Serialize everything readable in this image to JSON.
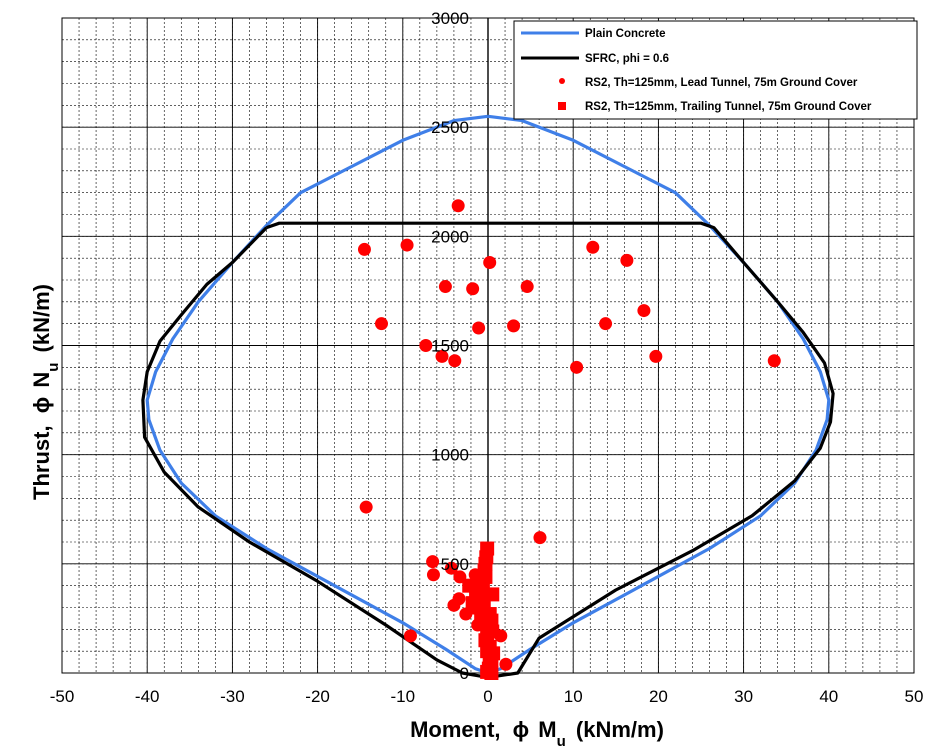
{
  "chart_data": {
    "type": "scatter",
    "xlabel_main": "Moment,",
    "xlabel_phi": "ϕ",
    "xlabel_sym": "M",
    "xlabel_sub": "u",
    "xlabel_unit": "(kNm/m)",
    "ylabel_main": "Thrust,",
    "ylabel_phi": "ϕ",
    "ylabel_sym": "N",
    "ylabel_sub": "u",
    "ylabel_unit": "(kN/m)",
    "xlim": [
      -50,
      50
    ],
    "ylim": [
      0,
      3000
    ],
    "x_ticks": [
      -50,
      -40,
      -30,
      -20,
      -10,
      0,
      10,
      20,
      30,
      40,
      50
    ],
    "y_ticks": [
      0,
      500,
      1000,
      1500,
      2000,
      2500,
      3000
    ],
    "grid": true,
    "legend_position": "top-right",
    "colors": {
      "plain_concrete": "#3f7fe8",
      "sfrc": "#000000",
      "rs2_points": "#ff0000"
    },
    "series": [
      {
        "name": "Plain Concrete",
        "kind": "line",
        "points": [
          [
            0,
            2550
          ],
          [
            -4,
            2530
          ],
          [
            -10,
            2440
          ],
          [
            -16,
            2320
          ],
          [
            -22,
            2200
          ],
          [
            -26,
            2050
          ],
          [
            -30,
            1880
          ],
          [
            -34,
            1700
          ],
          [
            -37,
            1530
          ],
          [
            -39,
            1380
          ],
          [
            -40,
            1250
          ],
          [
            -39.8,
            1160
          ],
          [
            -38.5,
            1020
          ],
          [
            -36,
            870
          ],
          [
            -32,
            720
          ],
          [
            -26,
            570
          ],
          [
            -18,
            400
          ],
          [
            -10,
            230
          ],
          [
            -5,
            110
          ],
          [
            -1.5,
            20
          ],
          [
            0,
            0
          ],
          [
            1.5,
            20
          ],
          [
            5,
            110
          ],
          [
            10,
            230
          ],
          [
            18,
            400
          ],
          [
            26,
            570
          ],
          [
            32,
            720
          ],
          [
            36,
            870
          ],
          [
            38.5,
            1020
          ],
          [
            39.8,
            1160
          ],
          [
            40,
            1250
          ],
          [
            39,
            1380
          ],
          [
            37,
            1530
          ],
          [
            34,
            1700
          ],
          [
            30,
            1880
          ],
          [
            26,
            2050
          ],
          [
            22,
            2200
          ],
          [
            16,
            2320
          ],
          [
            10,
            2440
          ],
          [
            4,
            2530
          ],
          [
            0,
            2550
          ]
        ]
      },
      {
        "name": "SFRC, phi = 0.6",
        "kind": "line",
        "points": [
          [
            -26,
            2040
          ],
          [
            -24.5,
            2060
          ],
          [
            25,
            2060
          ],
          [
            26.5,
            2040
          ],
          [
            30,
            1880
          ],
          [
            34,
            1700
          ],
          [
            37,
            1560
          ],
          [
            39.5,
            1420
          ],
          [
            40.5,
            1280
          ],
          [
            40.2,
            1150
          ],
          [
            39,
            1030
          ],
          [
            36,
            880
          ],
          [
            31,
            720
          ],
          [
            24,
            560
          ],
          [
            15,
            380
          ],
          [
            6,
            160
          ],
          [
            3.5,
            0
          ],
          [
            0,
            -20
          ],
          [
            -3,
            0
          ],
          [
            -6,
            60
          ],
          [
            -12,
            220
          ],
          [
            -20,
            420
          ],
          [
            -28,
            600
          ],
          [
            -34,
            760
          ],
          [
            -38,
            920
          ],
          [
            -40.3,
            1080
          ],
          [
            -40.5,
            1250
          ],
          [
            -40,
            1380
          ],
          [
            -38.5,
            1520
          ],
          [
            -36,
            1640
          ],
          [
            -33,
            1780
          ],
          [
            -30,
            1880
          ],
          [
            -26,
            2040
          ]
        ]
      },
      {
        "name": "RS2, Th=125mm, Lead Tunnel, 75m Ground Cover",
        "kind": "circle",
        "points": [
          [
            -3.5,
            2140
          ],
          [
            -14.5,
            1940
          ],
          [
            -9.5,
            1960
          ],
          [
            0.2,
            1880
          ],
          [
            12.3,
            1950
          ],
          [
            16.3,
            1890
          ],
          [
            -5,
            1770
          ],
          [
            -1.8,
            1760
          ],
          [
            4.6,
            1770
          ],
          [
            -12.5,
            1600
          ],
          [
            -1.1,
            1580
          ],
          [
            3,
            1590
          ],
          [
            13.8,
            1600
          ],
          [
            18.3,
            1660
          ],
          [
            -7.3,
            1500
          ],
          [
            -5.4,
            1450
          ],
          [
            -3.9,
            1430
          ],
          [
            10.4,
            1400
          ],
          [
            19.7,
            1450
          ],
          [
            33.6,
            1430
          ],
          [
            -14.3,
            760
          ],
          [
            6.1,
            620
          ],
          [
            -6.5,
            510
          ],
          [
            -6.4,
            450
          ],
          [
            -4.3,
            480
          ],
          [
            -3.3,
            440
          ],
          [
            -2.1,
            400
          ],
          [
            -3.4,
            340
          ],
          [
            -4,
            310
          ],
          [
            -2.6,
            270
          ],
          [
            -1.2,
            220
          ],
          [
            1.5,
            170
          ],
          [
            -9.1,
            170
          ],
          [
            2.1,
            40
          ],
          [
            -1.5,
            450
          ],
          [
            -0.8,
            340
          ],
          [
            0.3,
            250
          ],
          [
            0.6,
            80
          ]
        ]
      },
      {
        "name": "RS2, Th=125mm, Trailing Tunnel, 75m Ground Cover",
        "kind": "square",
        "points": [
          [
            -0.1,
            570
          ],
          [
            -0.2,
            530
          ],
          [
            -0.3,
            500
          ],
          [
            -0.4,
            470
          ],
          [
            -0.3,
            440
          ],
          [
            -0.6,
            410
          ],
          [
            -0.9,
            380
          ],
          [
            -1.4,
            350
          ],
          [
            -1.8,
            320
          ],
          [
            -0.5,
            300
          ],
          [
            0.2,
            270
          ],
          [
            0.4,
            240
          ],
          [
            0.3,
            210
          ],
          [
            -0.1,
            180
          ],
          [
            -0.3,
            150
          ],
          [
            0.2,
            120
          ],
          [
            0.6,
            90
          ],
          [
            0.4,
            60
          ],
          [
            0.2,
            40
          ],
          [
            0.1,
            20
          ],
          [
            -0.1,
            5
          ],
          [
            0.4,
            0
          ],
          [
            -0.9,
            390
          ],
          [
            0.5,
            360
          ],
          [
            -1.2,
            440
          ],
          [
            -2.2,
            400
          ],
          [
            -1.6,
            300
          ],
          [
            -0.8,
            260
          ],
          [
            0.5,
            190
          ],
          [
            -0.1,
            100
          ]
        ]
      }
    ]
  }
}
